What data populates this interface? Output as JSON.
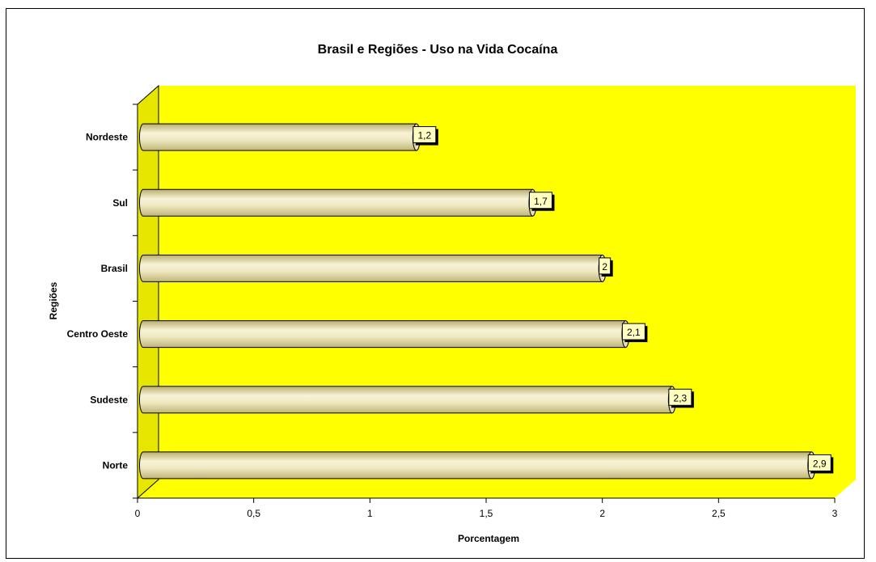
{
  "chart_data": {
    "type": "bar",
    "orientation": "horizontal",
    "title": "Brasil e Regiões - Uso na Vida Cocaína",
    "xlabel": "Porcentagem",
    "ylabel": "Regiões",
    "categories": [
      "Nordeste",
      "Sul",
      "Brasil",
      "Centro Oeste",
      "Sudeste",
      "Norte"
    ],
    "values": [
      1.2,
      1.7,
      2,
      2.1,
      2.3,
      2.9
    ],
    "data_labels": [
      "1,2",
      "1,7",
      "2",
      "2,1",
      "2,3",
      "2,9"
    ],
    "xlim": [
      0,
      3
    ],
    "xticks": [
      0,
      0.5,
      1,
      1.5,
      2,
      2.5,
      3
    ],
    "xtick_labels": [
      "0",
      "0,5",
      "1",
      "1,5",
      "2",
      "2,5",
      "3"
    ],
    "grid": false,
    "legend": "none",
    "colors": {
      "plot_background": "#ffff00",
      "side_wall": "#e6e600",
      "bar_fill_light": "#f7f3d6",
      "bar_fill_mid": "#e6dfa8",
      "bar_fill_dark": "#b8ae6e",
      "data_label_bg": "#ffffc0"
    }
  }
}
